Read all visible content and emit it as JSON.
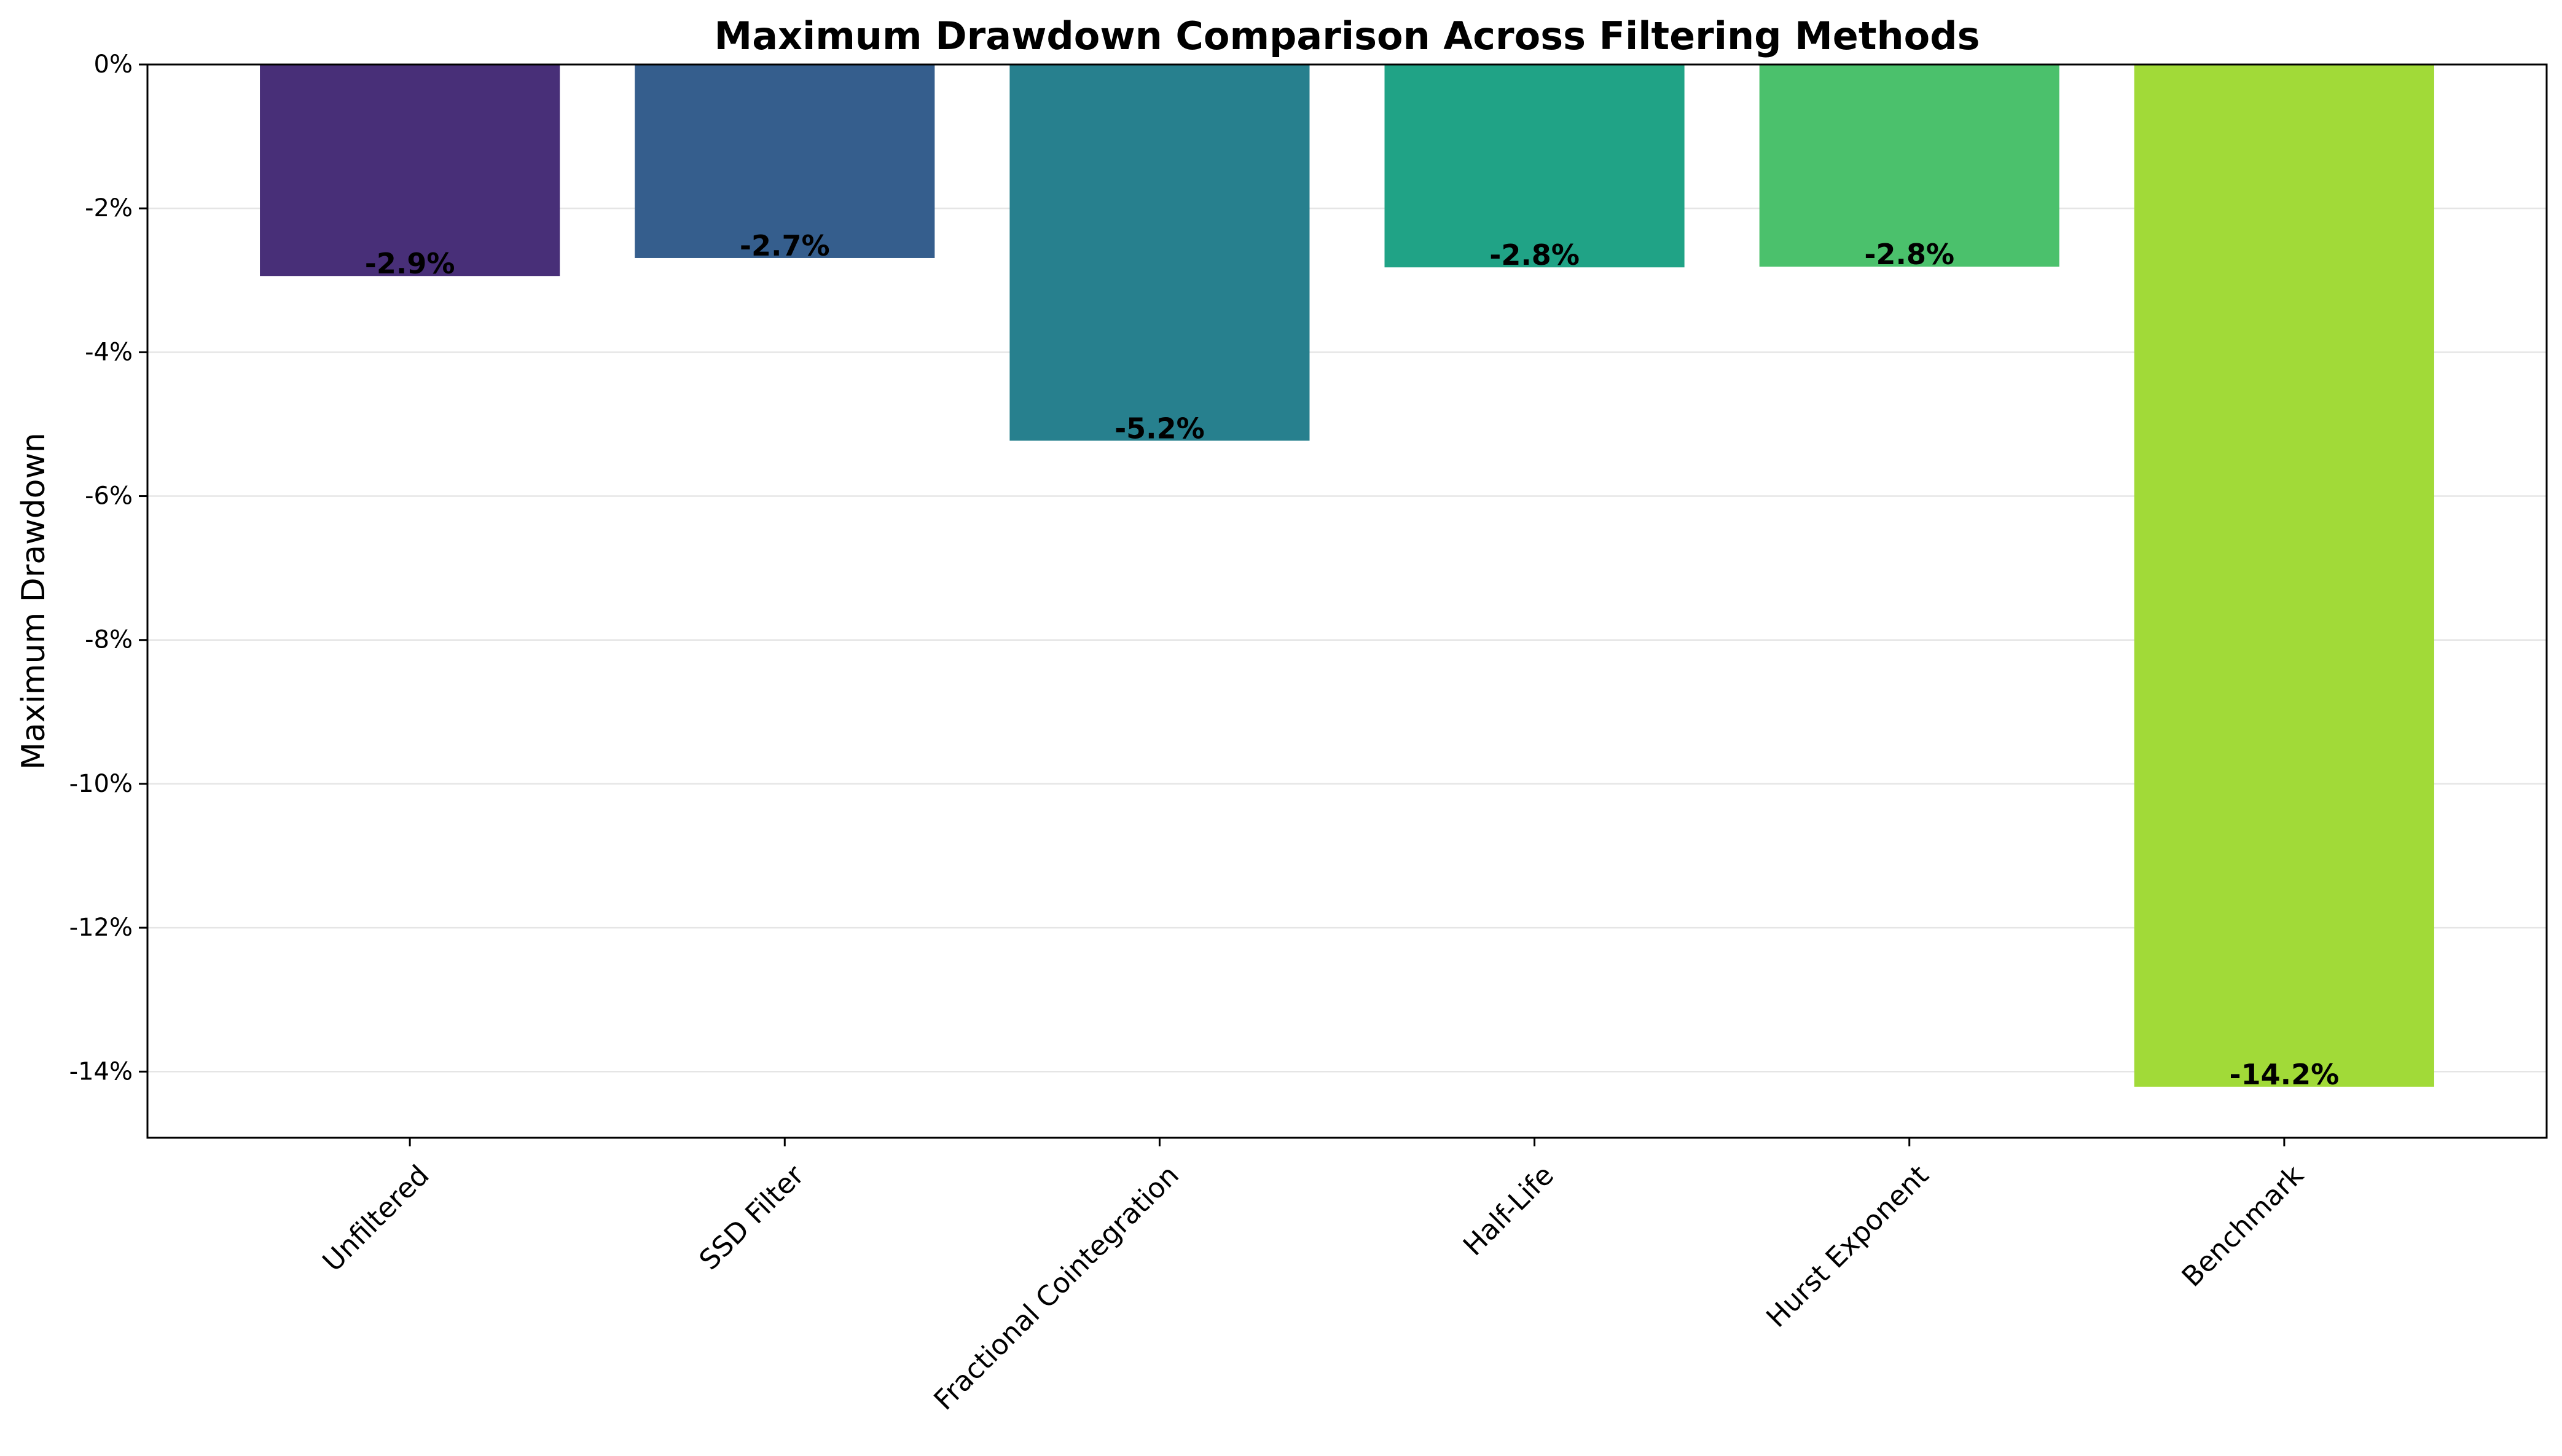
{
  "chart_data": {
    "type": "bar",
    "title": "Maximum Drawdown Comparison Across Filtering Methods",
    "xlabel": "",
    "ylabel": "Maximum Drawdown",
    "categories": [
      "Unfiltered",
      "SSD Filter",
      "Fractional Cointegration",
      "Half-Life",
      "Hurst Exponent",
      "Benchmark"
    ],
    "values": [
      -2.94,
      -2.69,
      -5.23,
      -2.82,
      -2.81,
      -14.21
    ],
    "value_labels": [
      "-2.9%",
      "-2.7%",
      "-5.2%",
      "-2.8%",
      "-2.8%",
      "-14.2%"
    ],
    "y_unit": "%",
    "ylim": [
      -14.92,
      0
    ],
    "yticks": [
      0,
      -2,
      -4,
      -6,
      -8,
      -10,
      -12,
      -14
    ],
    "ytick_labels": [
      "0%",
      "-2%",
      "-4%",
      "-6%",
      "-8%",
      "-10%",
      "-12%",
      "-14%"
    ],
    "grid": "y-major",
    "legend": "none",
    "colors": [
      "#482F78",
      "#355E8D",
      "#27808E",
      "#20A386",
      "#4BC16C",
      "#A1DA38"
    ],
    "grid_color": "#e5e5e5",
    "axis_color": "#000000"
  }
}
